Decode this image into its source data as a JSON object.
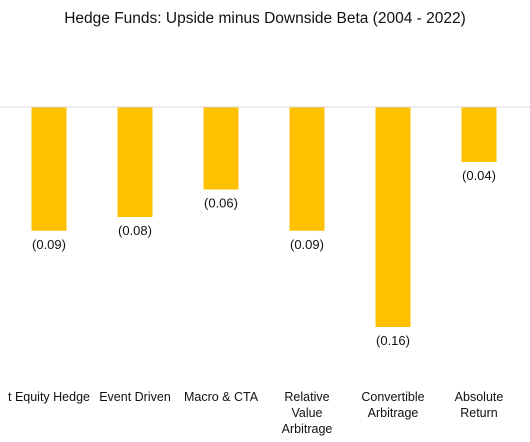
{
  "chart_data": {
    "type": "bar",
    "title": "Hedge Funds: Upside minus Downside Beta (2004 - 2022)",
    "categories": [
      "Equity Market Neutral / Long Short Equity Hedge",
      "Event Driven",
      "Macro & CTA",
      "Relative Value Arbitrage",
      "Convertible Arbitrage",
      "Absolute Return"
    ],
    "category_label_lines": [
      [
        "t Equity Hedge"
      ],
      [
        "Event Driven"
      ],
      [
        "Macro & CTA"
      ],
      [
        "Relative",
        "Value",
        "Arbitrage"
      ],
      [
        "Convertible",
        "Arbitrage"
      ],
      [
        "Absolute",
        "Return"
      ]
    ],
    "values": [
      -0.09,
      -0.08,
      -0.06,
      -0.09,
      -0.16,
      -0.04
    ],
    "data_labels": [
      "(0.09)",
      "(0.08)",
      "(0.06)",
      "(0.09)",
      "(0.16)",
      "(0.04)"
    ],
    "xlabel": "",
    "ylabel": "",
    "grid": false,
    "legend": "none",
    "bar_color": "#FFC000",
    "axis_color": "#D9D9D9"
  }
}
